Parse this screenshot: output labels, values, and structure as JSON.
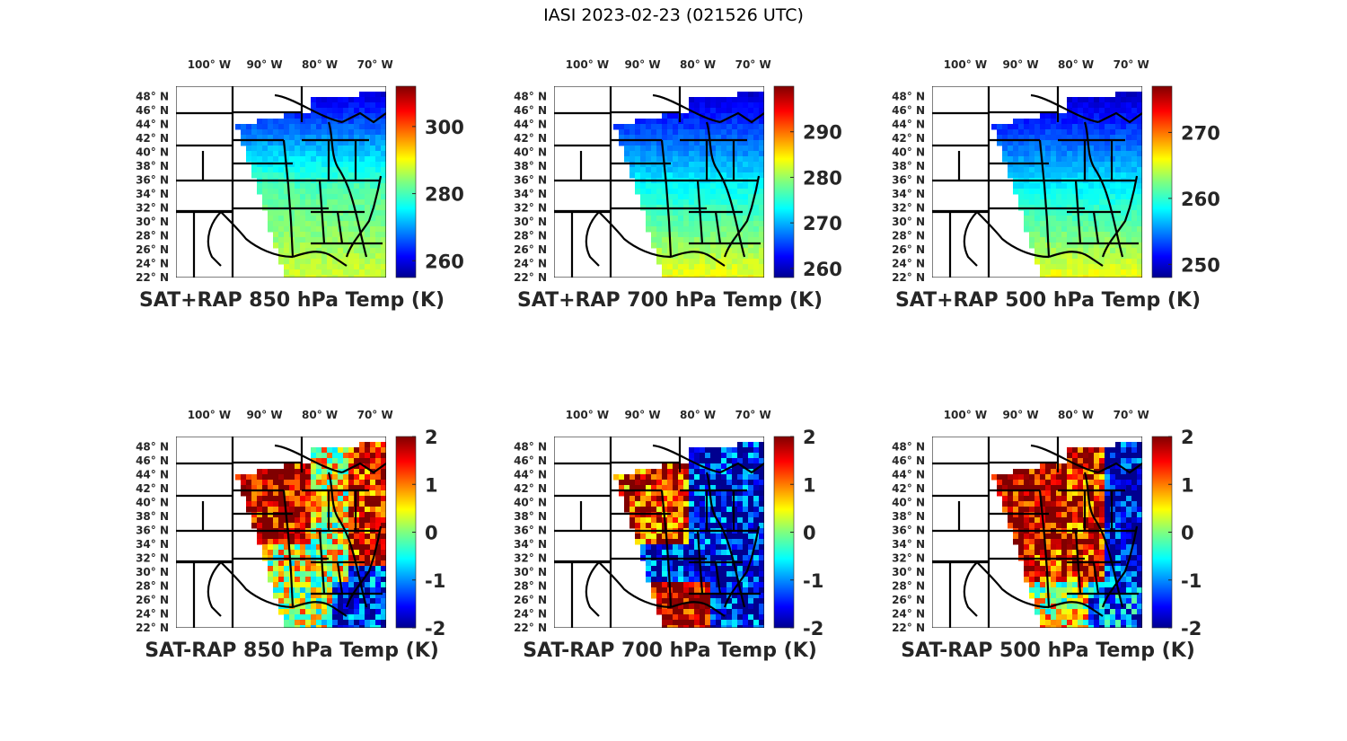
{
  "figure": {
    "title": "IASI 2023-02-23 (021526 UTC)"
  },
  "chart_data": [
    {
      "type": "heatmap",
      "panel": "top-left",
      "title": "SAT+RAP 850 hPa Temp (K)",
      "field": "sum",
      "xlabel": "",
      "ylabel": "",
      "x_ticks": [
        "100° W",
        "90° W",
        "80° W",
        "70° W"
      ],
      "x_tick_values": [
        -100,
        -90,
        -80,
        -70
      ],
      "y_ticks": [
        "48° N",
        "46° N",
        "44° N",
        "42° N",
        "40° N",
        "38° N",
        "36° N",
        "34° N",
        "32° N",
        "30° N",
        "28° N",
        "26° N",
        "24° N",
        "22° N"
      ],
      "y_tick_values": [
        48,
        46,
        44,
        42,
        40,
        38,
        36,
        34,
        32,
        30,
        28,
        26,
        24,
        22
      ],
      "xlim": [
        -106,
        -68
      ],
      "ylim": [
        22,
        49.5
      ],
      "colormap": "jet",
      "clim": [
        255,
        312
      ],
      "colorbar_ticks": [
        260,
        280,
        300
      ],
      "colorbar_position": "right",
      "gradient": {
        "north": 258,
        "central": 280,
        "south": 288
      }
    },
    {
      "type": "heatmap",
      "panel": "top-middle",
      "title": "SAT+RAP 700 hPa Temp (K)",
      "field": "sum",
      "x_ticks": [
        "100° W",
        "90° W",
        "80° W",
        "70° W"
      ],
      "x_tick_values": [
        -100,
        -90,
        -80,
        -70
      ],
      "y_ticks": [
        "48° N",
        "46° N",
        "44° N",
        "42° N",
        "40° N",
        "38° N",
        "36° N",
        "34° N",
        "32° N",
        "30° N",
        "28° N",
        "26° N",
        "24° N",
        "22° N"
      ],
      "y_tick_values": [
        48,
        46,
        44,
        42,
        40,
        38,
        36,
        34,
        32,
        30,
        28,
        26,
        24,
        22
      ],
      "xlim": [
        -106,
        -68
      ],
      "ylim": [
        22,
        49.5
      ],
      "colormap": "jet",
      "clim": [
        258,
        300
      ],
      "colorbar_ticks": [
        260,
        270,
        280,
        290
      ],
      "colorbar_position": "right",
      "gradient": {
        "north": 260,
        "central": 273,
        "south": 284
      }
    },
    {
      "type": "heatmap",
      "panel": "top-right",
      "title": "SAT+RAP 500 hPa Temp (K)",
      "field": "sum",
      "x_ticks": [
        "100° W",
        "90° W",
        "80° W",
        "70° W"
      ],
      "x_tick_values": [
        -100,
        -90,
        -80,
        -70
      ],
      "y_ticks": [
        "48° N",
        "46° N",
        "44° N",
        "42° N",
        "40° N",
        "38° N",
        "36° N",
        "34° N",
        "32° N",
        "30° N",
        "28° N",
        "26° N",
        "24° N",
        "22° N"
      ],
      "y_tick_values": [
        48,
        46,
        44,
        42,
        40,
        38,
        36,
        34,
        32,
        30,
        28,
        26,
        24,
        22
      ],
      "xlim": [
        -106,
        -68
      ],
      "ylim": [
        22,
        49.5
      ],
      "colormap": "jet",
      "clim": [
        248,
        277
      ],
      "colorbar_ticks": [
        250,
        260,
        270
      ],
      "colorbar_position": "right",
      "gradient": {
        "north": 249,
        "central": 258,
        "south": 266
      }
    },
    {
      "type": "heatmap",
      "panel": "bottom-left",
      "title": "SAT-RAP 850 hPa Temp (K)",
      "field": "difference",
      "x_ticks": [
        "100° W",
        "90° W",
        "80° W",
        "70° W"
      ],
      "x_tick_values": [
        -100,
        -90,
        -80,
        -70
      ],
      "y_ticks": [
        "48° N",
        "46° N",
        "44° N",
        "42° N",
        "40° N",
        "38° N",
        "36° N",
        "34° N",
        "32° N",
        "30° N",
        "28° N",
        "26° N",
        "24° N",
        "22° N"
      ],
      "y_tick_values": [
        48,
        46,
        44,
        42,
        40,
        38,
        36,
        34,
        32,
        30,
        28,
        26,
        24,
        22
      ],
      "xlim": [
        -106,
        -68
      ],
      "ylim": [
        22,
        49.5
      ],
      "colormap": "jet",
      "clim": [
        -2,
        2
      ],
      "colorbar_ticks": [
        2,
        1,
        0,
        -1,
        -2
      ],
      "colorbar_position": "right",
      "regions": [
        {
          "name": "upper-midwest",
          "value": 1.8
        },
        {
          "name": "southeast-land",
          "value": 0.3
        },
        {
          "name": "atlantic-north",
          "value": 1.5
        },
        {
          "name": "atlantic-south",
          "value": -1.5
        },
        {
          "name": "gulf",
          "value": 0.2
        }
      ]
    },
    {
      "type": "heatmap",
      "panel": "bottom-middle",
      "title": "SAT-RAP 700 hPa Temp (K)",
      "field": "difference",
      "x_ticks": [
        "100° W",
        "90° W",
        "80° W",
        "70° W"
      ],
      "x_tick_values": [
        -100,
        -90,
        -80,
        -70
      ],
      "y_ticks": [
        "48° N",
        "46° N",
        "44° N",
        "42° N",
        "40° N",
        "38° N",
        "36° N",
        "34° N",
        "32° N",
        "30° N",
        "28° N",
        "26° N",
        "24° N",
        "22° N"
      ],
      "y_tick_values": [
        48,
        46,
        44,
        42,
        40,
        38,
        36,
        34,
        32,
        30,
        28,
        26,
        24,
        22
      ],
      "xlim": [
        -106,
        -68
      ],
      "ylim": [
        22,
        49.5
      ],
      "colormap": "jet",
      "clim": [
        -2,
        2
      ],
      "colorbar_ticks": [
        2,
        1,
        0,
        -1,
        -2
      ],
      "colorbar_position": "right",
      "regions": [
        {
          "name": "upper-midwest",
          "value": 1.4
        },
        {
          "name": "southeast-land",
          "value": -1.6
        },
        {
          "name": "atlantic-north",
          "value": -1.7
        },
        {
          "name": "atlantic-south",
          "value": -1.6
        },
        {
          "name": "gulf",
          "value": 1.9
        }
      ]
    },
    {
      "type": "heatmap",
      "panel": "bottom-right",
      "title": "SAT-RAP 500 hPa Temp (K)",
      "field": "difference",
      "x_ticks": [
        "100° W",
        "90° W",
        "80° W",
        "70° W"
      ],
      "x_tick_values": [
        -100,
        -90,
        -80,
        -70
      ],
      "y_ticks": [
        "48° N",
        "46° N",
        "44° N",
        "42° N",
        "40° N",
        "38° N",
        "36° N",
        "34° N",
        "32° N",
        "30° N",
        "28° N",
        "26° N",
        "24° N",
        "22° N"
      ],
      "y_tick_values": [
        48,
        46,
        44,
        42,
        40,
        38,
        36,
        34,
        32,
        30,
        28,
        26,
        24,
        22
      ],
      "xlim": [
        -106,
        -68
      ],
      "ylim": [
        22,
        49.5
      ],
      "colormap": "jet",
      "clim": [
        -2,
        2
      ],
      "colorbar_ticks": [
        2,
        1,
        0,
        -1,
        -2
      ],
      "colorbar_position": "right",
      "regions": [
        {
          "name": "upper-midwest",
          "value": 1.9
        },
        {
          "name": "southeast-land",
          "value": 1.5
        },
        {
          "name": "atlantic-north",
          "value": -1.8
        },
        {
          "name": "atlantic-south",
          "value": -1.2
        },
        {
          "name": "gulf",
          "value": 0.4
        }
      ]
    }
  ]
}
